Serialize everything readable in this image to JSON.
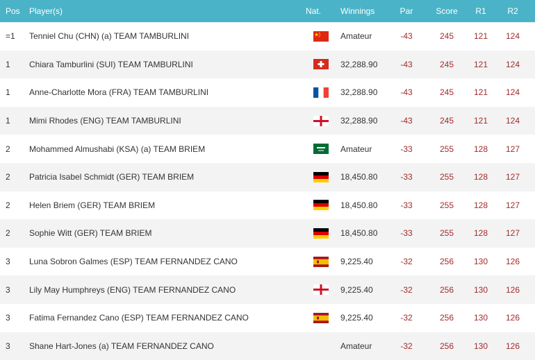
{
  "header": {
    "pos": "Pos",
    "player": "Player(s)",
    "nat": "Nat.",
    "winnings": "Winnings",
    "par": "Par",
    "score": "Score",
    "r1": "R1",
    "r2": "R2"
  },
  "rows": [
    {
      "pos": "=1",
      "player": "Tenniel Chu (CHN) (a) TEAM TAMBURLINI",
      "flag": "china-flag",
      "winnings": "Amateur",
      "par": "-43",
      "score": "245",
      "r1": "121",
      "r2": "124"
    },
    {
      "pos": "1",
      "player": "Chiara Tamburlini (SUI) TEAM TAMBURLINI",
      "flag": "switzerland-flag",
      "winnings": "32,288.90",
      "par": "-43",
      "score": "245",
      "r1": "121",
      "r2": "124"
    },
    {
      "pos": "1",
      "player": "Anne-Charlotte Mora (FRA) TEAM TAMBURLINI",
      "flag": "france-flag",
      "winnings": "32,288.90",
      "par": "-43",
      "score": "245",
      "r1": "121",
      "r2": "124"
    },
    {
      "pos": "1",
      "player": "Mimi Rhodes (ENG) TEAM TAMBURLINI",
      "flag": "england-flag",
      "winnings": "32,288.90",
      "par": "-43",
      "score": "245",
      "r1": "121",
      "r2": "124"
    },
    {
      "pos": "2",
      "player": "Mohammed Almushabi (KSA) (a) TEAM BRIEM",
      "flag": "saudi-arabia-flag",
      "winnings": "Amateur",
      "par": "-33",
      "score": "255",
      "r1": "128",
      "r2": "127"
    },
    {
      "pos": "2",
      "player": "Patricia Isabel Schmidt (GER) TEAM BRIEM",
      "flag": "germany-flag",
      "winnings": "18,450.80",
      "par": "-33",
      "score": "255",
      "r1": "128",
      "r2": "127"
    },
    {
      "pos": "2",
      "player": "Helen Briem (GER) TEAM BRIEM",
      "flag": "germany-flag",
      "winnings": "18,450.80",
      "par": "-33",
      "score": "255",
      "r1": "128",
      "r2": "127"
    },
    {
      "pos": "2",
      "player": "Sophie Witt (GER) TEAM BRIEM",
      "flag": "germany-flag",
      "winnings": "18,450.80",
      "par": "-33",
      "score": "255",
      "r1": "128",
      "r2": "127"
    },
    {
      "pos": "3",
      "player": "Luna Sobron Galmes (ESP) TEAM FERNANDEZ CANO",
      "flag": "spain-flag",
      "winnings": "9,225.40",
      "par": "-32",
      "score": "256",
      "r1": "130",
      "r2": "126"
    },
    {
      "pos": "3",
      "player": "Lily May Humphreys (ENG) TEAM FERNANDEZ CANO",
      "flag": "england-flag",
      "winnings": "9,225.40",
      "par": "-32",
      "score": "256",
      "r1": "130",
      "r2": "126"
    },
    {
      "pos": "3",
      "player": "Fatima Fernandez Cano (ESP) TEAM FERNANDEZ CANO",
      "flag": "spain-flag",
      "winnings": "9,225.40",
      "par": "-32",
      "score": "256",
      "r1": "130",
      "r2": "126"
    },
    {
      "pos": "3",
      "player": "Shane Hart-Jones (a) TEAM FERNANDEZ CANO",
      "flag": "",
      "winnings": "Amateur",
      "par": "-32",
      "score": "256",
      "r1": "130",
      "r2": "126"
    }
  ],
  "colors": {
    "header_bg": "#4bb3c7",
    "stat_text": "#a52a2a",
    "alt_row_bg": "#f3f3f3"
  }
}
